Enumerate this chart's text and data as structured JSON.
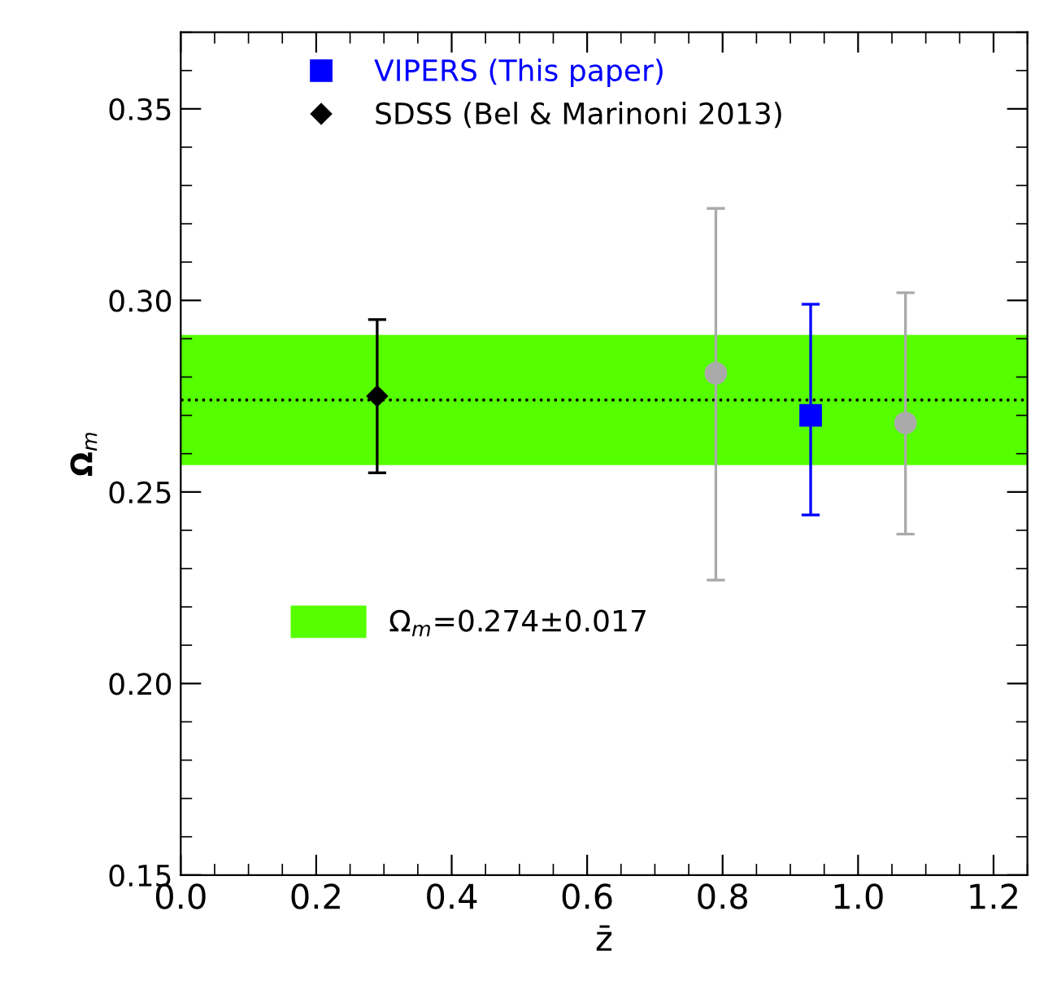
{
  "chart_data": {
    "type": "scatter",
    "xlabel": "z̄",
    "ylabel": "Ω$_{m}$",
    "xlim": [
      0.0,
      1.25
    ],
    "xticks": [
      {
        "value": 0.0,
        "label": "0.0"
      },
      {
        "value": 0.2,
        "label": "0.2"
      },
      {
        "value": 0.4,
        "label": "0.4"
      },
      {
        "value": 0.6,
        "label": "0.6"
      },
      {
        "value": 0.8,
        "label": "0.8"
      },
      {
        "value": 1.0,
        "label": "1.0"
      },
      {
        "value": 1.2,
        "label": "1.2"
      }
    ],
    "ylim": [
      0.15,
      0.37
    ],
    "yticks": [
      {
        "value": 0.15,
        "label": "0.15"
      },
      {
        "value": 0.2,
        "label": "0.20"
      },
      {
        "value": 0.25,
        "label": "0.25"
      },
      {
        "value": 0.3,
        "label": "0.30"
      },
      {
        "value": 0.35,
        "label": "0.35"
      }
    ],
    "series": [
      {
        "name": "VIPERS (This paper)",
        "color": "#0000ff",
        "marker": "square",
        "x": [
          0.93
        ],
        "values": [
          0.27
        ],
        "errors": [
          [
            0.244,
            0.299
          ]
        ]
      },
      {
        "name": "SDSS (Bel & Marinoni 2013)",
        "color": "#000000",
        "marker": "diamond",
        "x": [
          0.29
        ],
        "values": [
          0.275
        ],
        "errors": [
          [
            0.255,
            0.295
          ]
        ]
      },
      {
        "color": "#aaaaaa",
        "marker": "circle",
        "x": [
          0.79,
          1.07
        ],
        "values": [
          0.281,
          0.268
        ],
        "errors": [
          [
            0.227,
            0.324
          ],
          [
            0.239,
            0.302
          ]
        ]
      }
    ],
    "bands": [
      {
        "axis": "y",
        "from": 0.257,
        "to": 0.291,
        "color": "#55ff00",
        "label": "Ω$_{m}$=0.274±0.017"
      }
    ],
    "ref_lines": [
      {
        "axis": "y",
        "value": 0.274,
        "color": "#000000",
        "line_style": "dotted"
      }
    ],
    "legend": "top left",
    "grid": false
  }
}
